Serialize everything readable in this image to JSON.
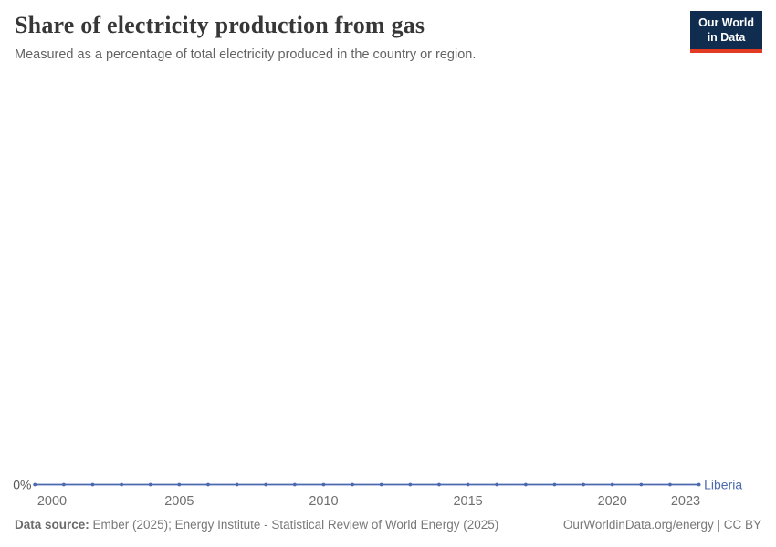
{
  "header": {
    "title": "Share of electricity production from gas",
    "subtitle": "Measured as a percentage of total electricity produced in the country or region.",
    "logo": {
      "line1": "Our World",
      "line2": "in Data",
      "bg_color": "#102d50",
      "accent_color": "#e33b23"
    }
  },
  "chart_data": {
    "type": "line",
    "title": "Share of electricity production from gas",
    "subtitle": "Measured as a percentage of total electricity produced in the country or region.",
    "x": [
      2000,
      2001,
      2002,
      2003,
      2004,
      2005,
      2006,
      2007,
      2008,
      2009,
      2010,
      2011,
      2012,
      2013,
      2014,
      2015,
      2016,
      2017,
      2018,
      2019,
      2020,
      2021,
      2022,
      2023
    ],
    "series": [
      {
        "name": "Liberia",
        "color": "#4b69af",
        "values": [
          0,
          0,
          0,
          0,
          0,
          0,
          0,
          0,
          0,
          0,
          0,
          0,
          0,
          0,
          0,
          0,
          0,
          0,
          0,
          0,
          0,
          0,
          0,
          0
        ]
      }
    ],
    "x_ticks": [
      2000,
      2005,
      2010,
      2015,
      2020,
      2023
    ],
    "y_ticks": [
      {
        "value": 0,
        "label": "0%"
      }
    ],
    "unit": "%",
    "grid": false,
    "legend_position": "end-of-line-label",
    "colors": {
      "x_tick_label": "#6f6f6f",
      "y_tick_label": "#555555"
    }
  },
  "footer": {
    "source_label": "Data source:",
    "source_text": " Ember (2025); Energy Institute - Statistical Review of World Energy (2025)",
    "link_text": "OurWorldinData.org/energy | CC BY"
  }
}
